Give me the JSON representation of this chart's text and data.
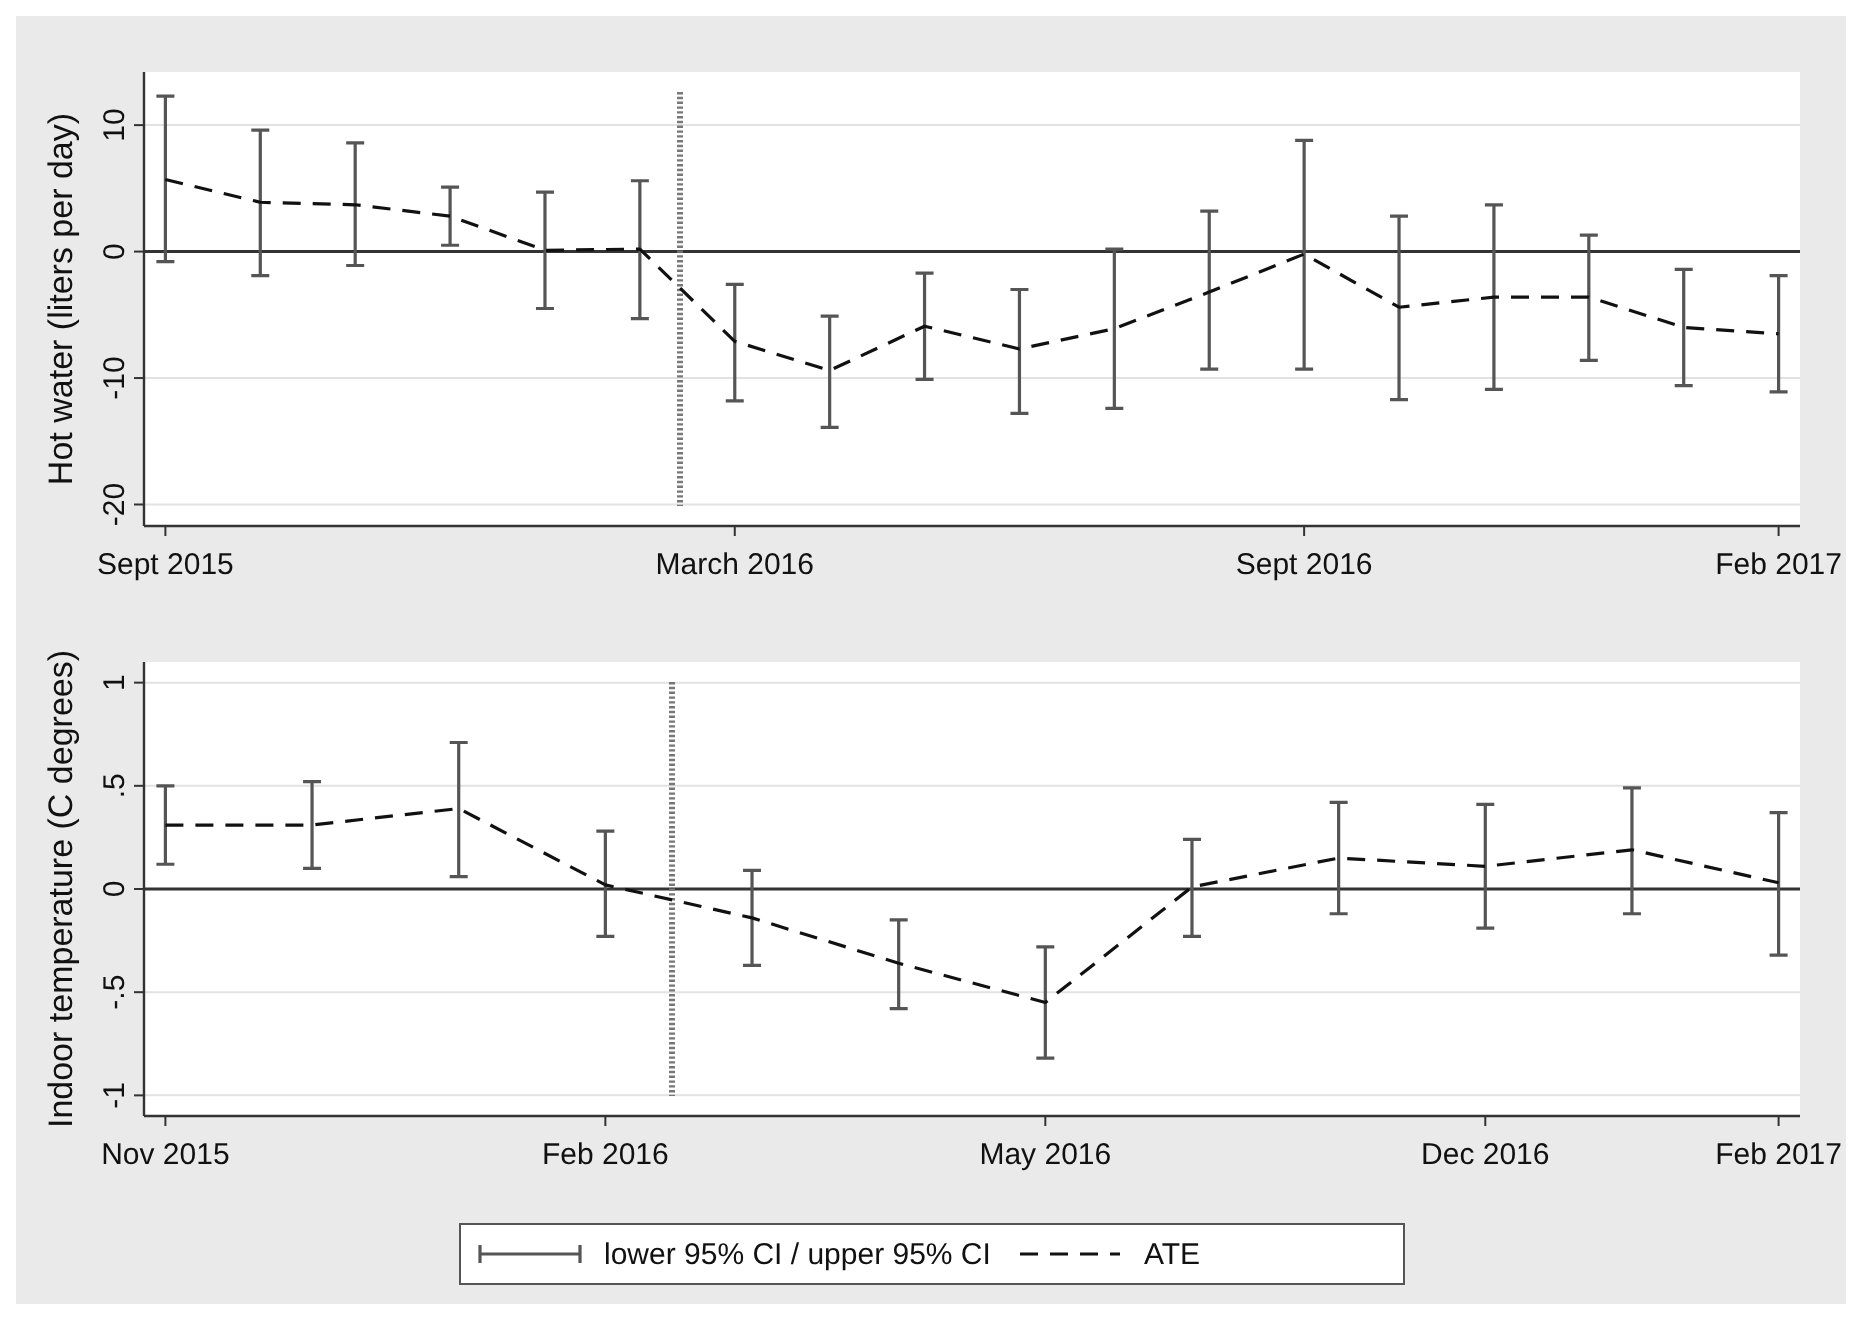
{
  "chart_data": [
    {
      "type": "line",
      "ylabel": "Hot water (liters per day)",
      "categories": [
        "Sept 2015",
        null,
        null,
        null,
        null,
        null,
        "March 2016",
        null,
        null,
        null,
        null,
        null,
        "Sept 2016",
        null,
        null,
        null,
        null,
        "Feb 2017"
      ],
      "ylim": [
        -21.7,
        14.2
      ],
      "yticks": [
        -20,
        -10,
        0,
        10
      ],
      "grid": "y",
      "legend": false,
      "series": [
        {
          "type": "bar",
          "color": "#555555",
          "base": [
            -0.8,
            -1.9,
            -1.1,
            0.5,
            -4.5,
            -5.3,
            -11.8,
            -13.9,
            -10.1,
            -12.8,
            -12.4,
            -9.3,
            -9.3,
            -11.7,
            -10.9,
            -8.6,
            -10.6,
            -11.1
          ],
          "values": [
            13.1,
            11.5,
            9.7,
            4.6,
            9.2,
            10.9,
            9.2,
            8.8,
            8.4,
            9.8,
            12.6,
            12.5,
            18.1,
            14.5,
            14.6,
            9.9,
            9.2,
            9.2
          ]
        },
        {
          "color": "#111111",
          "line_style": "dashed",
          "marker": "none",
          "values": [
            5.7,
            3.9,
            3.7,
            2.8,
            0.1,
            0.2,
            -7.1,
            -9.4,
            -5.9,
            -7.7,
            -6.1,
            -3.2,
            -0.2,
            -4.4,
            -3.6,
            -3.6,
            -6.0,
            -6.5
          ]
        }
      ],
      "ref_lines": [
        {
          "axis": "y",
          "value": 0,
          "color": "#333333",
          "line_style": "solid"
        }
      ]
    },
    {
      "type": "line",
      "ylabel": "Indoor temperature (C degrees)",
      "categories": [
        "Nov 2015",
        null,
        null,
        "Feb 2016",
        null,
        null,
        "May 2016",
        null,
        null,
        "Dec 2016",
        null,
        "Feb 2017"
      ],
      "ylim": [
        -1.1,
        1.1
      ],
      "yticks": [
        -1,
        {
          "value": -0.5,
          "label": "-.5"
        },
        0,
        {
          "value": 0.5,
          "label": ".5"
        },
        1
      ],
      "grid": "y",
      "legend": "bottom",
      "series": [
        {
          "type": "bar",
          "name": "lower 95% CI / upper 95% CI",
          "color": "#555555",
          "base": [
            0.12,
            0.1,
            0.06,
            -0.23,
            -0.37,
            -0.58,
            -0.82,
            -0.23,
            -0.12,
            -0.19,
            -0.12,
            -0.32
          ],
          "values": [
            0.38,
            0.42,
            0.65,
            0.51,
            0.46,
            0.43,
            0.54,
            0.47,
            0.54,
            0.6,
            0.61,
            0.69
          ]
        },
        {
          "name": "ATE",
          "color": "#111111",
          "line_style": "dashed",
          "marker": "none",
          "values": [
            0.31,
            0.31,
            0.39,
            0.02,
            -0.14,
            -0.36,
            -0.55,
            0.01,
            0.15,
            0.11,
            0.19,
            0.03
          ]
        }
      ],
      "ref_lines": [
        {
          "axis": "y",
          "value": 0,
          "color": "#333333",
          "line_style": "solid"
        }
      ]
    }
  ]
}
